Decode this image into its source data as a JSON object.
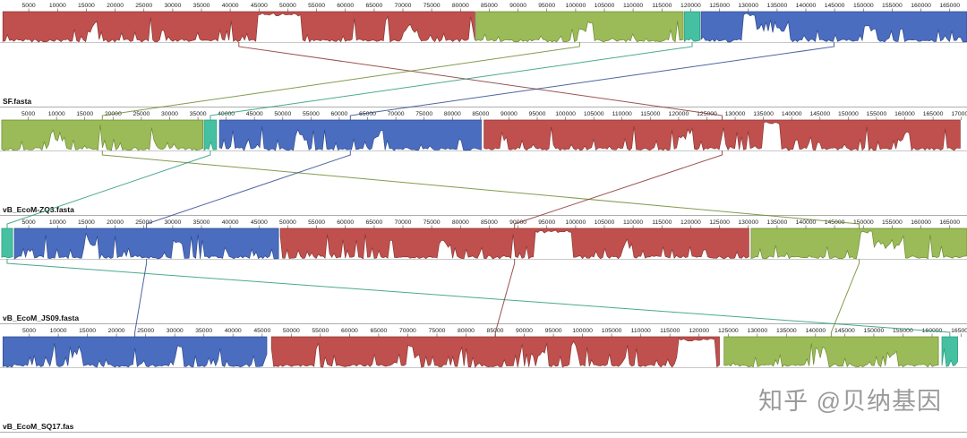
{
  "watermark": "知乎 @贝纳基因",
  "chart_data": {
    "type": "genome-alignment",
    "description": "Mauve-style progressive multiple genome alignment of four phage genomes. Each track shows a bp ruler, colored locally collinear blocks (LCBs) with jagged white sequence-similarity profiles, the genome file name, and thin colored connector lines linking homologous blocks between adjacent genomes.",
    "ruler": {
      "interval": 5000,
      "unit": "bp"
    },
    "colors": {
      "red": "#c0504d",
      "green": "#9bbb59",
      "blue": "#4a6dbf",
      "teal": "#45c1a2"
    },
    "edge_colors": {
      "red": "#8a3533",
      "green": "#6c8a2f",
      "blue": "#2f4a8f",
      "teal": "#2a9a7e"
    },
    "tracks": [
      {
        "name": "SF.fasta",
        "axis_max": 168000,
        "blocks": [
          {
            "color": "red",
            "start": 500,
            "end": 82500,
            "gaps": [
              [
                44500,
                52500
              ]
            ],
            "dips": [
              [
                15000,
                17000
              ],
              [
                70000,
                72500
              ]
            ]
          },
          {
            "color": "green",
            "start": 82700,
            "end": 118700,
            "dips": [
              [
                100500,
                103000
              ]
            ]
          },
          {
            "color": "teal",
            "start": 118900,
            "end": 121600
          },
          {
            "color": "blue",
            "start": 121800,
            "end": 168000,
            "gaps": [
              [
                129000,
                131500
              ]
            ],
            "dips": [
              [
                131500,
                137000
              ],
              [
                150000,
                152500
              ]
            ]
          }
        ]
      },
      {
        "name": "vB_EcoM-ZQ3.fasta",
        "axis_max": 171000,
        "blocks": [
          {
            "color": "green",
            "start": 300,
            "end": 35900,
            "dips": [
              [
                9000,
                11500
              ]
            ]
          },
          {
            "color": "teal",
            "start": 36100,
            "end": 38300
          },
          {
            "color": "blue",
            "start": 38800,
            "end": 85100,
            "dips": [
              [
                52000,
                54000
              ],
              [
                66000,
                68000
              ]
            ]
          },
          {
            "color": "red",
            "start": 85600,
            "end": 169800,
            "gaps": [
              [
                135000,
                138000
              ]
            ],
            "dips": [
              [
                120000,
                122500
              ],
              [
                158500,
                161000
              ]
            ]
          }
        ]
      },
      {
        "name": "vB_EcoM_JS09.fasta",
        "axis_max": 168000,
        "blocks": [
          {
            "color": "teal",
            "start": 300,
            "end": 2200
          },
          {
            "color": "blue",
            "start": 2500,
            "end": 48400,
            "dips": [
              [
                15000,
                17000
              ],
              [
                30000,
                32000
              ]
            ]
          },
          {
            "color": "red",
            "start": 48700,
            "end": 130100,
            "gaps": [
              [
                93000,
                99500
              ]
            ],
            "dips": [
              [
                76000,
                78500
              ],
              [
                108000,
                110000
              ]
            ]
          },
          {
            "color": "green",
            "start": 130500,
            "end": 168000,
            "gaps": [
              [
                149500,
                151500
              ]
            ],
            "dips": [
              [
                151500,
                157000
              ]
            ]
          }
        ]
      },
      {
        "name": "vB_EcoM_SQ17.fas",
        "axis_max": 166000,
        "blocks": [
          {
            "color": "blue",
            "start": 500,
            "end": 45800,
            "dips": [
              [
                12000,
                14000
              ],
              [
                30000,
                31500
              ]
            ]
          },
          {
            "color": "red",
            "start": 46600,
            "end": 123500,
            "gaps": [
              [
                116500,
                122800
              ]
            ],
            "dips": [
              [
                70000,
                72000
              ],
              [
                92000,
                93500
              ]
            ]
          },
          {
            "color": "green",
            "start": 124300,
            "end": 161100,
            "dips": [
              [
                140000,
                142000
              ],
              [
                152000,
                154000
              ]
            ]
          },
          {
            "color": "teal",
            "start": 161700,
            "end": 164400
          }
        ]
      }
    ],
    "connectors": [
      {
        "color": "red",
        "from": 0,
        "to": 1
      },
      {
        "color": "green",
        "from": 0,
        "to": 1
      },
      {
        "color": "teal",
        "from": 0,
        "to": 1
      },
      {
        "color": "blue",
        "from": 0,
        "to": 1
      },
      {
        "color": "green",
        "from": 1,
        "to": 2
      },
      {
        "color": "teal",
        "from": 1,
        "to": 2
      },
      {
        "color": "blue",
        "from": 1,
        "to": 2
      },
      {
        "color": "red",
        "from": 1,
        "to": 2
      },
      {
        "color": "teal",
        "from": 2,
        "to": 3
      },
      {
        "color": "blue",
        "from": 2,
        "to": 3
      },
      {
        "color": "red",
        "from": 2,
        "to": 3
      },
      {
        "color": "green",
        "from": 2,
        "to": 3
      }
    ]
  }
}
